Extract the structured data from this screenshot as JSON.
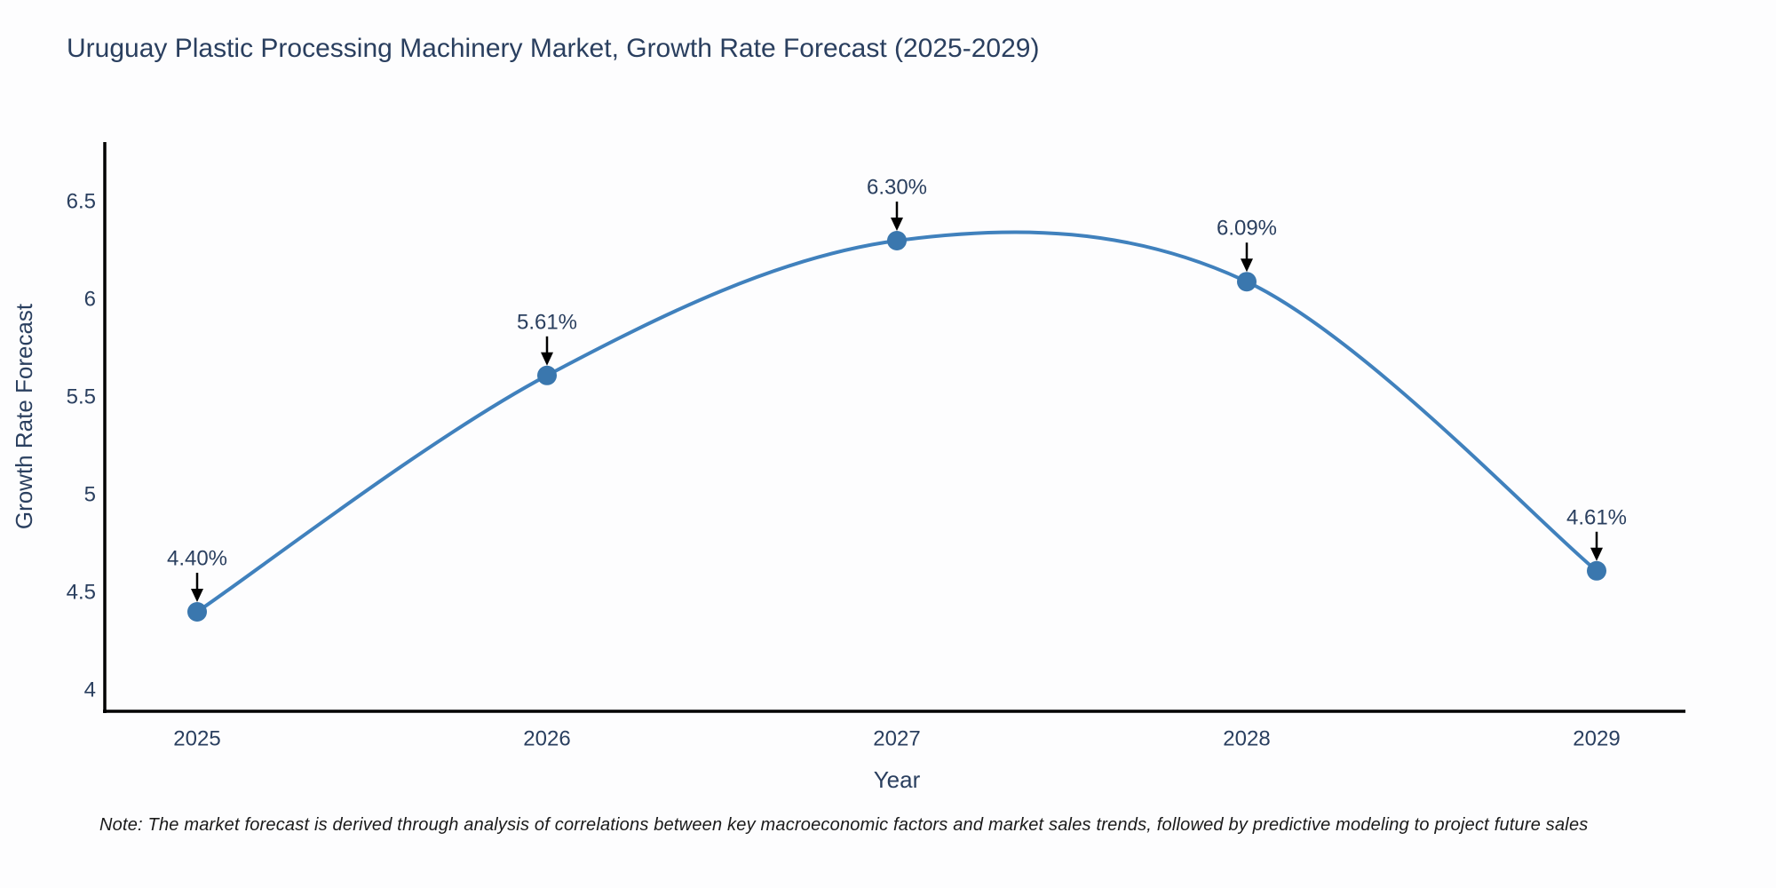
{
  "title": "Uruguay Plastic Processing Machinery Market, Growth Rate Forecast (2025-2029)",
  "note": "Note: The market forecast is derived through analysis of correlations between key macroeconomic factors and market sales trends, followed by predictive modeling to project future sales",
  "chart_data": {
    "type": "line",
    "title": "Uruguay Plastic Processing Machinery Market, Growth Rate Forecast (2025-2029)",
    "x": [
      2025,
      2026,
      2027,
      2028,
      2029
    ],
    "values": [
      4.4,
      5.61,
      6.3,
      6.09,
      4.61
    ],
    "point_labels": [
      "4.40%",
      "5.61%",
      "6.30%",
      "6.09%",
      "4.61%"
    ],
    "xlabel": "Year",
    "ylabel": "Growth Rate Forecast",
    "x_tick_labels": [
      "2025",
      "2026",
      "2027",
      "2028",
      "2029"
    ],
    "y_ticks": [
      4,
      4.5,
      5,
      5.5,
      6,
      6.5
    ],
    "y_tick_labels": [
      "4",
      "4.5",
      "5",
      "5.5",
      "6",
      "6.5"
    ],
    "ylim": [
      3.89,
      6.83
    ],
    "xlim": [
      2024.73,
      2029.25
    ],
    "grid": false,
    "legend": "none",
    "line_smoothing": "spline",
    "line_color": "#4081bd",
    "marker_color": "#3a77ae",
    "axis_line_color": "#000000",
    "annotation_arrow_color": "#000000",
    "text_color": "#2a3f5f"
  }
}
